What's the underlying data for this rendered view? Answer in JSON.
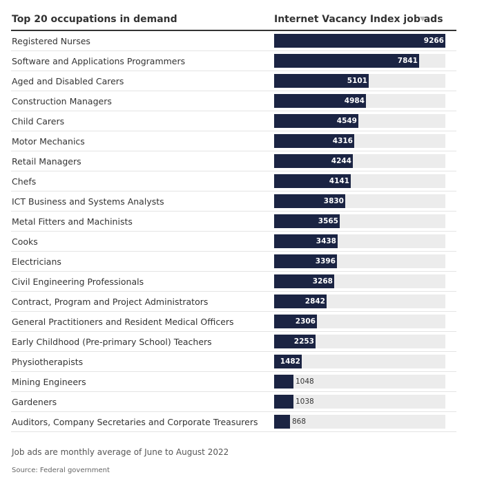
{
  "header": {
    "label_column": "Top 20 occupations in demand",
    "value_column": "Internet Vacancy Index job ads"
  },
  "icons": {
    "sort": "sort-down-icon"
  },
  "colors": {
    "bar": "#1b2443",
    "track": "#ececec"
  },
  "chart_data": {
    "type": "bar",
    "orientation": "horizontal",
    "xlim": [
      0,
      9266
    ],
    "categories": [
      "Registered Nurses",
      "Software and Applications Programmers",
      "Aged and Disabled Carers",
      "Construction Managers",
      "Child Carers",
      "Motor Mechanics",
      "Retail Managers",
      "Chefs",
      "ICT Business and Systems Analysts",
      "Metal Fitters and Machinists",
      "Cooks",
      "Electricians",
      "Civil Engineering Professionals",
      "Contract, Program and Project Administrators",
      "General Practitioners and Resident Medical Officers",
      "Early Childhood (Pre-primary School) Teachers",
      "Physiotherapists",
      "Mining Engineers",
      "Gardeners",
      "Auditors, Company Secretaries and Corporate Treasurers"
    ],
    "values": [
      9266,
      7841,
      5101,
      4984,
      4549,
      4316,
      4244,
      4141,
      3830,
      3565,
      3438,
      3396,
      3268,
      2842,
      2306,
      2253,
      1482,
      1048,
      1038,
      868
    ]
  },
  "footnote": "Job ads are monthly average of June to August 2022",
  "source": "Source: Federal government"
}
